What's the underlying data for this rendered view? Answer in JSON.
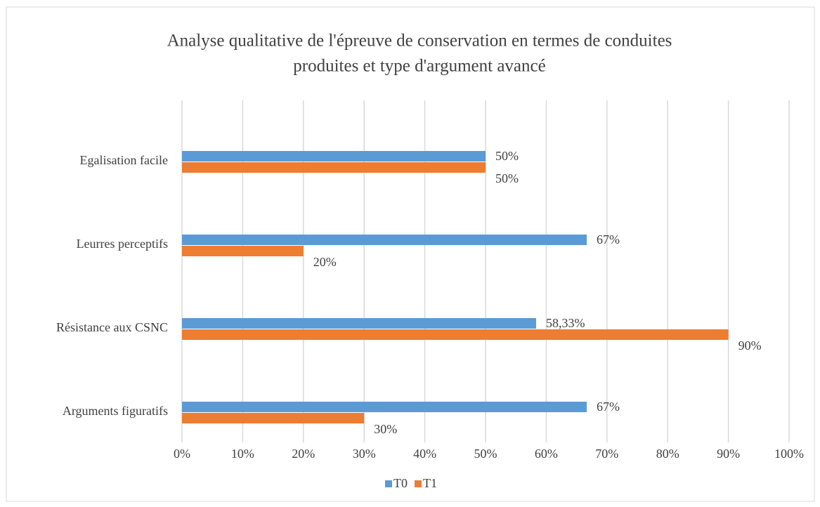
{
  "chart_data": {
    "type": "hbar",
    "title": "Analyse qualitative de l'épreuve de conservation en termes de conduites",
    "subtitle": "produites et type d'argument avancé",
    "categories": [
      "Egalisation facile",
      "Leurres perceptifs",
      "Résistance aux CSNC",
      "Arguments figuratifs"
    ],
    "series": [
      {
        "name": "T0",
        "color": "#5b9bd5",
        "values": [
          50,
          66.67,
          58.33,
          66.67
        ],
        "value_labels": [
          "50%",
          "67%",
          "58,33%",
          "67%"
        ]
      },
      {
        "name": "T1",
        "color": "#ed7d31",
        "values": [
          50,
          20,
          90,
          30
        ],
        "value_labels": [
          "50%",
          "20%",
          "90%",
          "30%"
        ]
      }
    ],
    "xlim": [
      0,
      100
    ],
    "xticks": [
      {
        "value": 0,
        "label": "0%"
      },
      {
        "value": 10,
        "label": "10%"
      },
      {
        "value": 20,
        "label": "20%"
      },
      {
        "value": 30,
        "label": "30%"
      },
      {
        "value": 40,
        "label": "40%"
      },
      {
        "value": 50,
        "label": "50%"
      },
      {
        "value": 60,
        "label": "60%"
      },
      {
        "value": 70,
        "label": "70%"
      },
      {
        "value": 80,
        "label": "80%"
      },
      {
        "value": 90,
        "label": "90%"
      },
      {
        "value": 100,
        "label": "100%"
      }
    ],
    "grid": true,
    "legend": "bottom"
  }
}
